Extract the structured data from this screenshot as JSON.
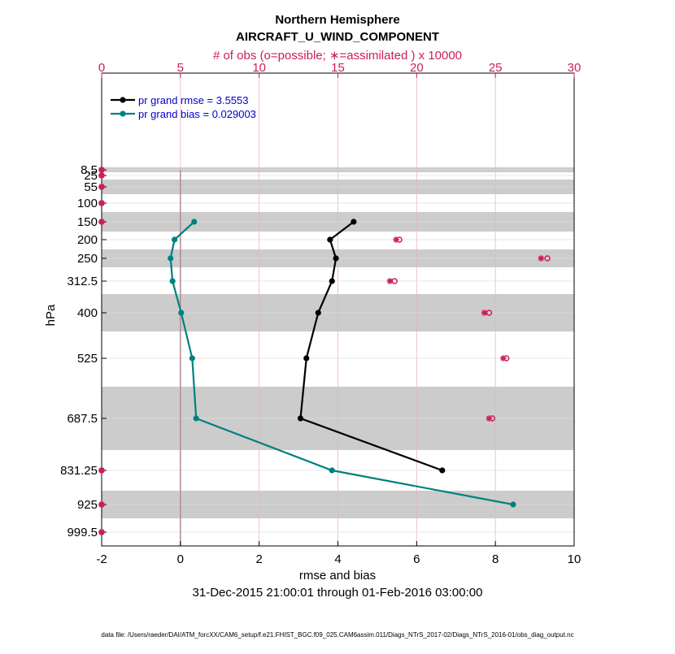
{
  "chart_data": {
    "type": "line",
    "title": "Northern Hemisphere",
    "subtitle": "AIRCRAFT_U_WIND_COMPONENT",
    "top_axis_label": "# of obs (o=possible; ∗=assimilated ) x 10000",
    "xlabel": "rmse and bias",
    "ylabel": "hPa",
    "date_range": "31-Dec-2015 21:00:01 through 01-Feb-2016 03:00:00",
    "footer": "data file: /Users/raeder/DAI/ATM_forcXX/CAM6_setup/f.e21.FHIST_BGC.f09_025.CAM6assim.011/Diags_NTrS_2017-02/Diags_NTrS_2016-01/obs_diag_output.nc",
    "xlim": [
      -2,
      10
    ],
    "xticks": [
      "-2",
      "0",
      "2",
      "4",
      "6",
      "8",
      "10"
    ],
    "top_xlim": [
      0,
      30
    ],
    "top_xticks": [
      "0",
      "5",
      "10",
      "15",
      "20",
      "25",
      "30"
    ],
    "levels": [
      8.5,
      25,
      55,
      100,
      150,
      200,
      250,
      312.5,
      400,
      525,
      687.5,
      831.25,
      925,
      999.5
    ],
    "level_labels": [
      "8.5",
      "25",
      "55",
      "100",
      "150",
      "200",
      "250",
      "312.5",
      "400",
      "525",
      "687.5",
      "831.25",
      "925",
      "999.5"
    ],
    "series": [
      {
        "name": "rmse",
        "legend": "pr grand rmse = 3.5553",
        "color": "#000000",
        "levels": [
          150,
          200,
          250,
          312.5,
          400,
          525,
          687.5,
          831.25
        ],
        "values": [
          4.4,
          3.8,
          3.95,
          3.85,
          3.5,
          3.2,
          3.05,
          6.65
        ]
      },
      {
        "name": "bias",
        "legend": "pr grand bias = 0.029003",
        "color": "#008080",
        "levels": [
          150,
          200,
          250,
          312.5,
          400,
          525,
          687.5,
          831.25,
          925
        ],
        "values": [
          0.35,
          -0.15,
          -0.25,
          -0.2,
          0.02,
          0.3,
          0.4,
          3.85,
          8.45
        ]
      }
    ],
    "obs_possible": {
      "levels": [
        8.5,
        25,
        55,
        100,
        150,
        200,
        250,
        312.5,
        400,
        525,
        687.5,
        831.25,
        925,
        999.5
      ],
      "values": [
        0,
        0,
        0,
        0,
        0,
        18.9,
        28.3,
        18.6,
        24.6,
        25.7,
        24.8,
        0,
        0,
        0
      ]
    },
    "obs_assimilated": {
      "levels": [
        8.5,
        25,
        55,
        100,
        150,
        200,
        250,
        312.5,
        400,
        525,
        687.5,
        831.25,
        925,
        999.5
      ],
      "values": [
        0,
        0,
        0,
        0,
        0,
        18.7,
        27.9,
        18.3,
        24.3,
        25.5,
        24.6,
        0,
        0,
        0
      ]
    },
    "shaded_levels": [
      8.5,
      55,
      150,
      250,
      400,
      687.5,
      925
    ],
    "colors": {
      "top_axis": "#cc1f5a",
      "legend_text": "#0000cc",
      "band": "#cccccc",
      "grid_v": "#e8b4c4",
      "zero_line": "#b08a96"
    }
  }
}
